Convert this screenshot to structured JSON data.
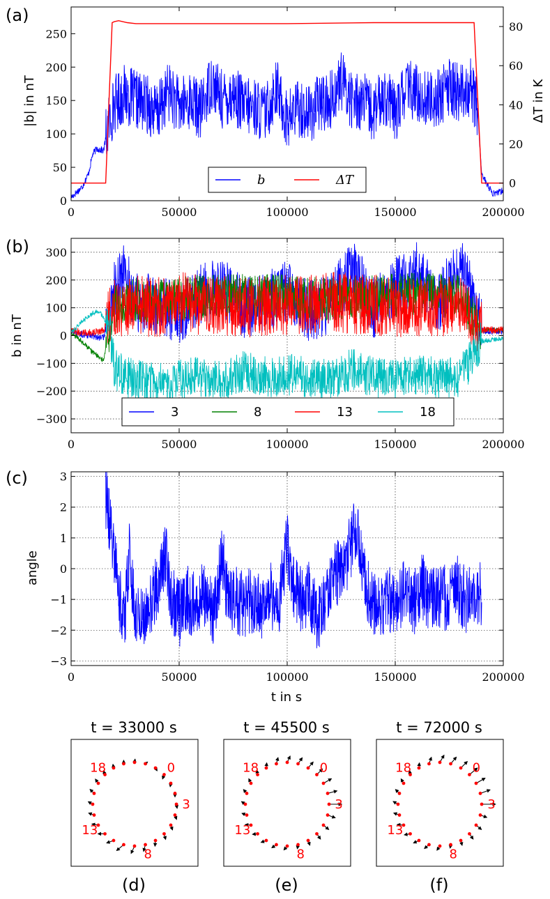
{
  "chart_data": [
    {
      "id": "a",
      "type": "line",
      "panel_label": "(a)",
      "ylabel": "|b| in nT",
      "y2label": "ΔT in K",
      "xlabel": "",
      "xlim": [
        0,
        200000
      ],
      "ylim": [
        0,
        290
      ],
      "y2lim": [
        -9,
        90
      ],
      "xticks": [
        "0",
        "50000",
        "100000",
        "150000",
        "200000"
      ],
      "xtick_values": [
        0,
        50000,
        100000,
        150000,
        200000
      ],
      "yticks": [
        "0",
        "50",
        "100",
        "150",
        "200",
        "250"
      ],
      "ytick_values": [
        0,
        50,
        100,
        150,
        200,
        250
      ],
      "y2ticks": [
        "0",
        "20",
        "40",
        "60",
        "80"
      ],
      "y2tick_values": [
        0,
        20,
        40,
        60,
        80
      ],
      "grid": false,
      "legend_position": "lower-center",
      "series": [
        {
          "name": "b",
          "color": "#0000ff",
          "axis": "left",
          "noise": 45,
          "x": [
            0,
            5000,
            8000,
            10000,
            12000,
            15000,
            17000,
            20000,
            25000,
            30000,
            35000,
            40000,
            45000,
            50000,
            55000,
            60000,
            65000,
            70000,
            75000,
            80000,
            85000,
            90000,
            95000,
            100000,
            105000,
            110000,
            115000,
            120000,
            125000,
            130000,
            135000,
            140000,
            145000,
            150000,
            155000,
            160000,
            165000,
            170000,
            175000,
            180000,
            185000,
            188000,
            190000,
            195000,
            200000
          ],
          "y": [
            5,
            20,
            40,
            70,
            78,
            75,
            110,
            145,
            160,
            150,
            145,
            130,
            165,
            140,
            150,
            135,
            180,
            150,
            160,
            140,
            140,
            130,
            170,
            120,
            140,
            130,
            145,
            150,
            180,
            150,
            150,
            130,
            160,
            130,
            170,
            160,
            150,
            155,
            170,
            160,
            170,
            140,
            40,
            10,
            15
          ]
        },
        {
          "name": "ΔT",
          "color": "#ff0000",
          "axis": "right",
          "noise": 0,
          "x": [
            0,
            16000,
            19000,
            20000,
            22000,
            26000,
            30000,
            60000,
            100000,
            140000,
            180000,
            185000,
            186500,
            190000,
            200000
          ],
          "y": [
            0,
            0,
            82,
            82.5,
            83,
            82,
            81.5,
            81.5,
            81.5,
            82,
            82,
            82,
            82,
            0,
            0
          ]
        }
      ]
    },
    {
      "id": "b",
      "type": "line",
      "panel_label": "(b)",
      "ylabel": "b in nT",
      "xlabel": "",
      "xlim": [
        0,
        200000
      ],
      "ylim": [
        -350,
        350
      ],
      "xticks": [
        "0",
        "50000",
        "100000",
        "150000",
        "200000"
      ],
      "xtick_values": [
        0,
        50000,
        100000,
        150000,
        200000
      ],
      "yticks": [
        "−300",
        "−200",
        "−100",
        "0",
        "100",
        "200",
        "300"
      ],
      "ytick_values": [
        -300,
        -200,
        -100,
        0,
        100,
        200,
        300
      ],
      "grid": true,
      "legend_position": "lower-center",
      "series": [
        {
          "name": "3",
          "color": "#0000ff",
          "noise": 110,
          "x": [
            0,
            10000,
            15000,
            20000,
            25000,
            30000,
            40000,
            50000,
            60000,
            70000,
            80000,
            90000,
            100000,
            110000,
            120000,
            130000,
            140000,
            150000,
            160000,
            170000,
            180000,
            185000,
            190000,
            200000
          ],
          "y": [
            10,
            0,
            -10,
            160,
            230,
            120,
            110,
            80,
            150,
            170,
            100,
            120,
            160,
            90,
            110,
            240,
            100,
            170,
            230,
            120,
            250,
            150,
            20,
            15
          ]
        },
        {
          "name": "8",
          "color": "#008000",
          "noise": 80,
          "x": [
            0,
            5000,
            10000,
            15000,
            20000,
            30000,
            40000,
            60000,
            80000,
            100000,
            120000,
            140000,
            160000,
            180000,
            190000,
            200000
          ],
          "y": [
            10,
            -20,
            -60,
            -90,
            100,
            130,
            120,
            140,
            150,
            140,
            130,
            140,
            150,
            140,
            20,
            20
          ]
        },
        {
          "name": "13",
          "color": "#ff0000",
          "noise": 110,
          "x": [
            0,
            10000,
            15000,
            20000,
            30000,
            40000,
            50000,
            60000,
            80000,
            100000,
            120000,
            140000,
            160000,
            180000,
            190000,
            200000
          ],
          "y": [
            15,
            10,
            20,
            100,
            110,
            100,
            120,
            110,
            100,
            110,
            120,
            110,
            100,
            110,
            20,
            20
          ]
        },
        {
          "name": "18",
          "color": "#00bfbf",
          "noise": 75,
          "x": [
            0,
            5000,
            10000,
            13000,
            15000,
            18000,
            20000,
            25000,
            30000,
            40000,
            50000,
            60000,
            70000,
            80000,
            90000,
            100000,
            110000,
            120000,
            130000,
            140000,
            150000,
            160000,
            170000,
            180000,
            190000,
            200000
          ],
          "y": [
            10,
            50,
            80,
            90,
            60,
            20,
            -120,
            -150,
            -160,
            -170,
            -160,
            -150,
            -160,
            -130,
            -150,
            -140,
            -150,
            -160,
            -120,
            -150,
            -160,
            -140,
            -150,
            -150,
            -20,
            -10
          ]
        }
      ]
    },
    {
      "id": "c",
      "type": "line",
      "panel_label": "(c)",
      "ylabel": "angle",
      "xlabel": "t in s",
      "xlim": [
        0,
        200000
      ],
      "ylim": [
        -3.15,
        3.15
      ],
      "xticks": [
        "0",
        "50000",
        "100000",
        "150000",
        "200000"
      ],
      "xtick_values": [
        0,
        50000,
        100000,
        150000,
        200000
      ],
      "yticks": [
        "−3",
        "−2",
        "−1",
        "0",
        "1",
        "2",
        "3"
      ],
      "ytick_values": [
        -3,
        -2,
        -1,
        0,
        1,
        2,
        3
      ],
      "grid": true,
      "legend_position": "none",
      "series": [
        {
          "name": "angle",
          "color": "#0000ff",
          "noise": 1.1,
          "x": [
            16000,
            17000,
            20000,
            22000,
            25000,
            27000,
            30000,
            33000,
            36000,
            40000,
            44000,
            46000,
            50000,
            54000,
            58000,
            62000,
            66000,
            70000,
            72000,
            76000,
            80000,
            84000,
            88000,
            92000,
            96000,
            100000,
            102000,
            106000,
            110000,
            114000,
            118000,
            122000,
            126000,
            130000,
            132000,
            134000,
            138000,
            142000,
            146000,
            150000,
            154000,
            158000,
            162000,
            166000,
            170000,
            174000,
            178000,
            182000,
            186000,
            190000
          ],
          "y": [
            2.3,
            2.0,
            0.5,
            -1.0,
            -1.5,
            0.5,
            -1.5,
            -1.8,
            -1.5,
            -0.5,
            0.5,
            -0.8,
            -1.5,
            -1.0,
            -1.2,
            -0.8,
            -1.5,
            0.5,
            -0.8,
            -1.0,
            -1.2,
            -1.0,
            -1.3,
            -0.8,
            -1.2,
            0.8,
            -0.5,
            -1.0,
            -0.8,
            -1.6,
            -1.0,
            -0.2,
            0.0,
            0.9,
            1.3,
            0.5,
            -1.0,
            -1.2,
            -1.0,
            -1.0,
            -0.8,
            -1.2,
            -0.5,
            -1.0,
            -1.0,
            -0.9,
            -0.5,
            -1.0,
            -1.0,
            -0.8
          ]
        }
      ]
    },
    {
      "id": "d",
      "type": "scatter",
      "panel_label": "(d)",
      "title": "t = 33000 s",
      "point_color": "#ff0000",
      "arrow_color": "#000000",
      "n_points": 24,
      "labeled_points": {
        "0": "0",
        "3": "3",
        "8": "8",
        "13": "13",
        "18": "18"
      },
      "arrows": [
        {
          "index": 0,
          "length": 0.2,
          "angle_deg": -110
        },
        {
          "index": 1,
          "length": 0.15,
          "angle_deg": -100
        },
        {
          "index": 2,
          "length": 0.15,
          "angle_deg": -90
        },
        {
          "index": 3,
          "length": 0.18,
          "angle_deg": -80
        },
        {
          "index": 4,
          "length": 0.2,
          "angle_deg": -70
        },
        {
          "index": 5,
          "length": 0.22,
          "angle_deg": -70
        },
        {
          "index": 6,
          "length": 0.25,
          "angle_deg": -75
        },
        {
          "index": 7,
          "length": 0.25,
          "angle_deg": -95
        },
        {
          "index": 8,
          "length": 0.3,
          "angle_deg": -105
        },
        {
          "index": 9,
          "length": 0.35,
          "angle_deg": -115
        },
        {
          "index": 10,
          "length": 0.4,
          "angle_deg": -140
        },
        {
          "index": 11,
          "length": 0.32,
          "angle_deg": -160
        },
        {
          "index": 12,
          "length": 0.3,
          "angle_deg": 180
        },
        {
          "index": 13,
          "length": 0.28,
          "angle_deg": 170
        },
        {
          "index": 14,
          "length": 0.25,
          "angle_deg": 160
        },
        {
          "index": 15,
          "length": 0.22,
          "angle_deg": 150
        },
        {
          "index": 16,
          "length": 0.25,
          "angle_deg": 135
        },
        {
          "index": 17,
          "length": 0.22,
          "angle_deg": 125
        },
        {
          "index": 18,
          "length": 0.18,
          "angle_deg": 110
        },
        {
          "index": 19,
          "length": 0.16,
          "angle_deg": 100
        },
        {
          "index": 20,
          "length": 0.15,
          "angle_deg": 90
        },
        {
          "index": 21,
          "length": 0.14,
          "angle_deg": 80
        },
        {
          "index": 22,
          "length": 0.12,
          "angle_deg": 40
        },
        {
          "index": 23,
          "length": 0.14,
          "angle_deg": -60
        }
      ]
    },
    {
      "id": "e",
      "type": "scatter",
      "panel_label": "(e)",
      "title": "t = 45500 s",
      "point_color": "#ff0000",
      "arrow_color": "#000000",
      "n_points": 24,
      "labeled_points": {
        "0": "0",
        "3": "3",
        "8": "8",
        "13": "13",
        "18": "18"
      },
      "arrows": [
        {
          "index": 0,
          "length": 0.35,
          "angle_deg": 45
        },
        {
          "index": 1,
          "length": 0.4,
          "angle_deg": 30
        },
        {
          "index": 2,
          "length": 0.42,
          "angle_deg": 15
        },
        {
          "index": 3,
          "length": 0.55,
          "angle_deg": 0
        },
        {
          "index": 4,
          "length": 0.35,
          "angle_deg": -20
        },
        {
          "index": 5,
          "length": 0.3,
          "angle_deg": -40
        },
        {
          "index": 6,
          "length": 0.28,
          "angle_deg": -55
        },
        {
          "index": 7,
          "length": 0.22,
          "angle_deg": -70
        },
        {
          "index": 8,
          "length": 0.18,
          "angle_deg": -100
        },
        {
          "index": 9,
          "length": 0.22,
          "angle_deg": -130
        },
        {
          "index": 10,
          "length": 0.24,
          "angle_deg": -145
        },
        {
          "index": 11,
          "length": 0.24,
          "angle_deg": -160
        },
        {
          "index": 12,
          "length": 0.22,
          "angle_deg": -175
        },
        {
          "index": 13,
          "length": 0.25,
          "angle_deg": 175
        },
        {
          "index": 14,
          "length": 0.22,
          "angle_deg": 160
        },
        {
          "index": 15,
          "length": 0.2,
          "angle_deg": 145
        },
        {
          "index": 16,
          "length": 0.22,
          "angle_deg": 130
        },
        {
          "index": 17,
          "length": 0.22,
          "angle_deg": 115
        },
        {
          "index": 18,
          "length": 0.2,
          "angle_deg": 100
        },
        {
          "index": 19,
          "length": 0.22,
          "angle_deg": 85
        },
        {
          "index": 20,
          "length": 0.28,
          "angle_deg": 75
        },
        {
          "index": 21,
          "length": 0.3,
          "angle_deg": 65
        },
        {
          "index": 22,
          "length": 0.32,
          "angle_deg": 55
        },
        {
          "index": 23,
          "length": 0.34,
          "angle_deg": 50
        }
      ]
    },
    {
      "id": "f",
      "type": "scatter",
      "panel_label": "(f)",
      "title": "t = 72000 s",
      "point_color": "#ff0000",
      "arrow_color": "#000000",
      "n_points": 24,
      "labeled_points": {
        "0": "0",
        "3": "3",
        "8": "8",
        "13": "13",
        "18": "18"
      },
      "arrows": [
        {
          "index": 0,
          "length": 0.45,
          "angle_deg": 40
        },
        {
          "index": 1,
          "length": 0.45,
          "angle_deg": 30
        },
        {
          "index": 2,
          "length": 0.45,
          "angle_deg": 20
        },
        {
          "index": 3,
          "length": 0.6,
          "angle_deg": 0
        },
        {
          "index": 4,
          "length": 0.3,
          "angle_deg": -20
        },
        {
          "index": 5,
          "length": 0.3,
          "angle_deg": -40
        },
        {
          "index": 6,
          "length": 0.28,
          "angle_deg": -55
        },
        {
          "index": 7,
          "length": 0.22,
          "angle_deg": -75
        },
        {
          "index": 8,
          "length": 0.15,
          "angle_deg": -100
        },
        {
          "index": 9,
          "length": 0.22,
          "angle_deg": -125
        },
        {
          "index": 10,
          "length": 0.26,
          "angle_deg": -140
        },
        {
          "index": 11,
          "length": 0.26,
          "angle_deg": -155
        },
        {
          "index": 12,
          "length": 0.26,
          "angle_deg": -170
        },
        {
          "index": 13,
          "length": 0.28,
          "angle_deg": 175
        },
        {
          "index": 14,
          "length": 0.26,
          "angle_deg": 160
        },
        {
          "index": 15,
          "length": 0.24,
          "angle_deg": 150
        },
        {
          "index": 16,
          "length": 0.24,
          "angle_deg": 135
        },
        {
          "index": 17,
          "length": 0.22,
          "angle_deg": 120
        },
        {
          "index": 18,
          "length": 0.18,
          "angle_deg": 100
        },
        {
          "index": 19,
          "length": 0.22,
          "angle_deg": 85
        },
        {
          "index": 20,
          "length": 0.3,
          "angle_deg": 70
        },
        {
          "index": 21,
          "length": 0.36,
          "angle_deg": 60
        },
        {
          "index": 22,
          "length": 0.38,
          "angle_deg": 50
        },
        {
          "index": 23,
          "length": 0.4,
          "angle_deg": 45
        }
      ]
    }
  ]
}
